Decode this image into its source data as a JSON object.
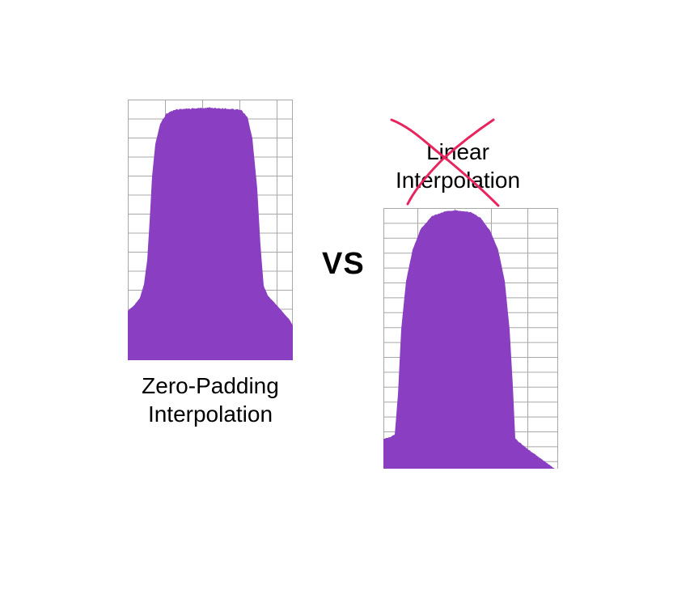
{
  "colors": {
    "fill": "#8a3fc2",
    "grid": "#a8a8a8",
    "cross": "#e8245e",
    "text": "#000000"
  },
  "left": {
    "caption_line1": "Zero-Padding",
    "caption_line2": "Interpolation"
  },
  "middle": {
    "vs": "VS"
  },
  "right": {
    "caption_line1": "Linear",
    "caption_line2": "Interpolation",
    "crossed_out": true
  }
}
